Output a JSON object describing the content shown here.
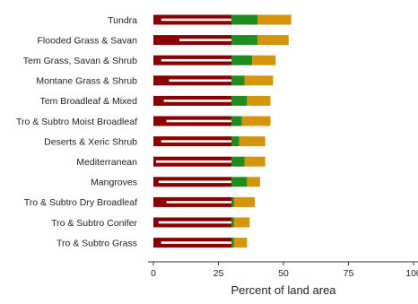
{
  "chart_data": {
    "type": "bar",
    "orientation": "horizontal",
    "stacked": true,
    "xlabel": "Percent of land area",
    "ylabel": "",
    "xlim": [
      0,
      100
    ],
    "xticks": [
      "0",
      "25",
      "50",
      "75",
      "100"
    ],
    "grid": false,
    "categories": [
      "Tundra",
      "Flooded Grass & Savan",
      "Tem Grass, Savan & Shrub",
      "Montane Grass & Shrub",
      "Tem Broadleaf & Mixed",
      "Tro & Subtro Moist Broadleaf",
      "Deserts & Xeric Shrub",
      "Mediterranean",
      "Mangroves",
      "Tro & Subtro Dry Broadleaf",
      "Tro & Subtro Conifer",
      "Tro & Subtro Grass"
    ],
    "series": [
      {
        "color": "#8b0000",
        "values": [
          30,
          30,
          30,
          30,
          30,
          30,
          30,
          30,
          30,
          30,
          30,
          30
        ]
      },
      {
        "color": "#1e8c1e",
        "values": [
          10,
          10,
          8,
          5,
          6,
          4,
          3,
          5,
          6,
          1,
          1,
          1
        ]
      },
      {
        "color": "#d4950c",
        "values": [
          13,
          12,
          9,
          11,
          9,
          11,
          10,
          8,
          5,
          8,
          6,
          5
        ]
      }
    ],
    "inner_segments": [
      {
        "start": 3,
        "end": 30
      },
      {
        "start": 10,
        "end": 30
      },
      {
        "start": 3,
        "end": 30
      },
      {
        "start": 6,
        "end": 30
      },
      {
        "start": 4,
        "end": 30
      },
      {
        "start": 5,
        "end": 30
      },
      {
        "start": 3,
        "end": 30
      },
      {
        "start": 1,
        "end": 30
      },
      {
        "start": 2,
        "end": 30
      },
      {
        "start": 5,
        "end": 30
      },
      {
        "start": 2,
        "end": 30
      },
      {
        "start": 3,
        "end": 30
      }
    ],
    "colors": {
      "inner_line": "#ffffff",
      "axis": "#333333",
      "text": "#222222"
    }
  }
}
